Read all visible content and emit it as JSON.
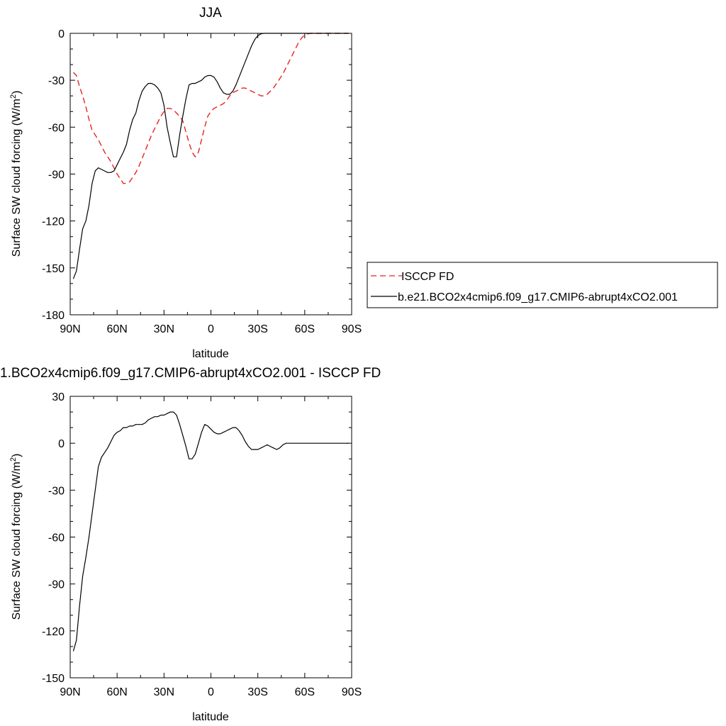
{
  "chart_data": [
    {
      "type": "line",
      "title": "JJA",
      "xlabel": "latitude",
      "ylabel": "Surface SW cloud forcing (W/m",
      "ylabel_sup": "2",
      "ylabel_end": ")",
      "xlim": [
        90,
        -90
      ],
      "ylim": [
        -180,
        0
      ],
      "yticks": [
        0,
        -30,
        -60,
        -90,
        -120,
        -150,
        -180
      ],
      "xticks": [
        90,
        60,
        30,
        0,
        -30,
        -60,
        -90
      ],
      "xticklabels": [
        "90N",
        "60N",
        "30N",
        "0",
        "30S",
        "60S",
        "90S"
      ],
      "legend": {
        "placement": "right-of-plot",
        "entries": [
          {
            "label": "ISCCP FD",
            "style": "dashed",
            "color": "#e8231f"
          },
          {
            "label": "b.e21.BCO2x4cmip6.f09_g17.CMIP6-abrupt4xCO2.001",
            "style": "solid",
            "color": "#000000"
          }
        ]
      },
      "series": [
        {
          "name": "ISCCP FD",
          "color": "#e8231f",
          "style": "dashed",
          "x": [
            88,
            86,
            84,
            82,
            80,
            78,
            76,
            74,
            72,
            70,
            68,
            66,
            64,
            62,
            60,
            58,
            56,
            54,
            52,
            50,
            48,
            46,
            44,
            42,
            40,
            38,
            36,
            34,
            32,
            30,
            28,
            26,
            24,
            22,
            20,
            18,
            16,
            14,
            12,
            10,
            8,
            6,
            4,
            2,
            0,
            -2,
            -4,
            -6,
            -8,
            -10,
            -12,
            -14,
            -16,
            -18,
            -20,
            -22,
            -24,
            -26,
            -28,
            -30,
            -32,
            -34,
            -36,
            -38,
            -40,
            -42,
            -44,
            -46,
            -48,
            -50,
            -52,
            -54,
            -56,
            -58,
            -60,
            -62,
            -64,
            -66,
            -68,
            -70,
            -72,
            -74,
            -76,
            -78,
            -80,
            -82,
            -84,
            -86,
            -88
          ],
          "y": [
            -25,
            -27,
            -34,
            -40,
            -47,
            -55,
            -62,
            -65,
            -68,
            -72,
            -76,
            -79,
            -82,
            -86,
            -90,
            -93,
            -96,
            -96,
            -95,
            -92,
            -89,
            -85,
            -80,
            -75,
            -70,
            -65,
            -61,
            -57,
            -53,
            -50,
            -48,
            -48,
            -49,
            -51,
            -53,
            -56,
            -63,
            -70,
            -76,
            -79,
            -76,
            -68,
            -60,
            -53,
            -50,
            -48,
            -47,
            -46,
            -45,
            -43,
            -40,
            -38,
            -37,
            -36,
            -35,
            -35,
            -36,
            -37,
            -38,
            -39,
            -40,
            -40,
            -39,
            -37,
            -35,
            -32,
            -29,
            -26,
            -22,
            -18,
            -14,
            -10,
            -6,
            -3,
            -1,
            -0.3,
            0,
            0,
            0,
            0,
            0,
            0,
            0,
            0,
            0,
            0,
            0,
            0,
            0
          ]
        },
        {
          "name": "b.e21.BCO2x4cmip6.f09_g17.CMIP6-abrupt4xCO2.001",
          "color": "#000000",
          "style": "solid",
          "x": [
            88,
            86,
            84,
            82,
            80,
            78,
            76,
            74,
            72,
            70,
            68,
            66,
            64,
            62,
            60,
            58,
            56,
            54,
            52,
            50,
            48,
            46,
            44,
            42,
            40,
            38,
            36,
            34,
            32,
            30,
            28,
            26,
            24,
            22,
            20,
            18,
            16,
            14,
            12,
            10,
            8,
            6,
            4,
            2,
            0,
            -2,
            -4,
            -6,
            -8,
            -10,
            -12,
            -14,
            -16,
            -18,
            -20,
            -22,
            -24,
            -26,
            -28,
            -30,
            -32,
            -34,
            -36,
            -38,
            -40,
            -42,
            -44,
            -46,
            -48,
            -50,
            -52,
            -54,
            -56,
            -58,
            -60,
            -62,
            -64,
            -66,
            -68,
            -70,
            -72,
            -74,
            -76,
            -78,
            -80,
            -82,
            -84,
            -86,
            -88
          ],
          "y": [
            -157,
            -152,
            -138,
            -125,
            -120,
            -110,
            -96,
            -88,
            -86,
            -87,
            -88,
            -89,
            -89,
            -88,
            -84,
            -80,
            -76,
            -71,
            -62,
            -55,
            -51,
            -43,
            -37,
            -34,
            -32,
            -32,
            -33,
            -35,
            -38,
            -46,
            -60,
            -70,
            -79,
            -79,
            -65,
            -53,
            -42,
            -33,
            -32,
            -32,
            -31,
            -30,
            -28,
            -27,
            -27,
            -28,
            -31,
            -35,
            -38,
            -39,
            -39,
            -37,
            -33,
            -28,
            -23,
            -18,
            -13,
            -8,
            -4,
            -1.5,
            -0.3,
            0,
            0,
            0,
            0,
            0,
            0,
            0,
            0,
            0,
            0,
            0,
            0,
            0,
            0,
            0,
            0,
            0,
            0,
            0,
            0,
            0,
            0,
            0,
            0,
            0,
            0,
            0,
            0
          ]
        }
      ]
    },
    {
      "type": "line",
      "title": "1.BCO2x4cmip6.f09_g17.CMIP6-abrupt4xCO2.001 - ISCCP FD",
      "xlabel": "latitude",
      "ylabel": "Surface SW cloud forcing (W/m",
      "ylabel_sup": "2",
      "ylabel_end": ")",
      "xlim": [
        90,
        -90
      ],
      "ylim": [
        -150,
        30
      ],
      "yticks": [
        30,
        0,
        -30,
        -60,
        -90,
        -120,
        -150
      ],
      "xticks": [
        90,
        60,
        30,
        0,
        -30,
        -60,
        -90
      ],
      "xticklabels": [
        "90N",
        "60N",
        "30N",
        "0",
        "30S",
        "60S",
        "90S"
      ],
      "series": [
        {
          "color": "#000000",
          "style": "solid",
          "x": [
            88,
            86,
            84,
            82,
            80,
            78,
            76,
            74,
            72,
            70,
            68,
            66,
            64,
            62,
            60,
            58,
            56,
            54,
            52,
            50,
            48,
            46,
            44,
            42,
            40,
            38,
            36,
            34,
            32,
            30,
            28,
            26,
            24,
            22,
            20,
            18,
            16,
            14,
            12,
            10,
            8,
            6,
            4,
            2,
            0,
            -2,
            -4,
            -6,
            -8,
            -10,
            -12,
            -14,
            -16,
            -18,
            -20,
            -22,
            -24,
            -26,
            -28,
            -30,
            -32,
            -34,
            -36,
            -38,
            -40,
            -42,
            -44,
            -46,
            -48,
            -50,
            -52,
            -54,
            -56,
            -58,
            -60,
            -62,
            -64,
            -66,
            -68,
            -70,
            -72,
            -74,
            -76,
            -78,
            -80,
            -82,
            -84,
            -86,
            -88
          ],
          "y": [
            -133,
            -126,
            -104,
            -85,
            -73,
            -60,
            -45,
            -30,
            -15,
            -9,
            -6,
            -3,
            1,
            5,
            7,
            8,
            10,
            10,
            11,
            11,
            12,
            12,
            12,
            13,
            15,
            16,
            17,
            17,
            18,
            18,
            19,
            20,
            20,
            18,
            12,
            5,
            -2,
            -10,
            -10,
            -7,
            0,
            7,
            12,
            11,
            9,
            7,
            6,
            6,
            7,
            8,
            9,
            10,
            10,
            8,
            5,
            1,
            -2,
            -4,
            -4,
            -4,
            -3,
            -2,
            -1,
            -2,
            -3,
            -4,
            -3,
            -1,
            0,
            0,
            0,
            0,
            0,
            0,
            0,
            0,
            0,
            0,
            0,
            0,
            0,
            0,
            0,
            0,
            0,
            0,
            0,
            0,
            0
          ]
        }
      ]
    }
  ]
}
